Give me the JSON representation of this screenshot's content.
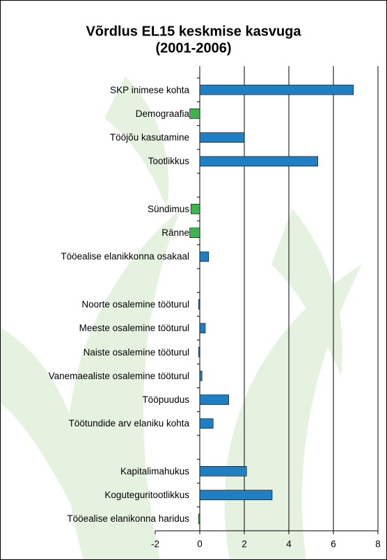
{
  "chart_data": {
    "type": "hbar",
    "title": "Võrdlus EL15 keskmise kasvuga",
    "subtitle": "(2001-2006)",
    "categories": [
      "SKP inimese kohta",
      "Demograafia",
      "Tööjõu kasutamine",
      "Tootlikkus",
      null,
      "Sündimus",
      "Ränne",
      "Tööealise elanikkonna osakaal",
      null,
      "Noorte osalemine tööturul",
      "Meeste osalemine tööturul",
      "Naiste osalemine tööturul",
      "Vanemaealiste osalemine tööturul",
      "Tööpuudus",
      "Töötundide arv elaniku kohta",
      null,
      "Kapitalimahukus",
      "Koguteguritootlikkus",
      "Tööealise elanikonna haridus"
    ],
    "values": [
      6.9,
      -0.45,
      2.0,
      5.3,
      null,
      -0.4,
      -0.45,
      0.4,
      null,
      -0.05,
      0.25,
      -0.05,
      0.1,
      1.3,
      0.6,
      null,
      2.1,
      3.25,
      -0.05
    ],
    "colors": [
      "#1f7fc4",
      "#3cb44b",
      "#1f7fc4",
      "#1f7fc4",
      null,
      "#3cb44b",
      "#3cb44b",
      "#1f7fc4",
      null,
      "#1f7fc4",
      "#1f7fc4",
      "#1f7fc4",
      "#1f7fc4",
      "#1f7fc4",
      "#1f7fc4",
      null,
      "#1f7fc4",
      "#1f7fc4",
      "#3cb44b"
    ],
    "xlim": [
      -2,
      8
    ],
    "xticks": [
      -2,
      0,
      2,
      4,
      6,
      8
    ],
    "grid": true
  }
}
